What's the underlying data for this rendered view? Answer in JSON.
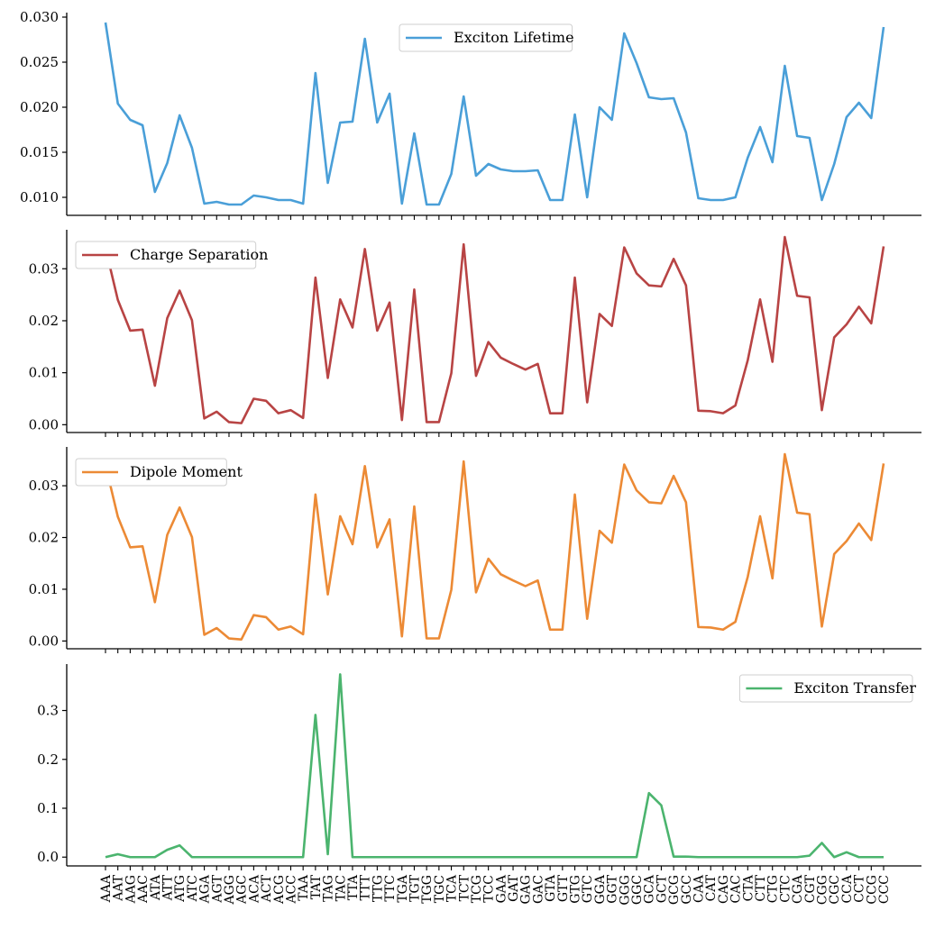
{
  "chart_data": {
    "type": "line",
    "x": [
      "AAA",
      "AAT",
      "AAG",
      "AAC",
      "ATA",
      "ATT",
      "ATG",
      "ATC",
      "AGA",
      "AGT",
      "AGG",
      "AGC",
      "ACA",
      "ACT",
      "ACG",
      "ACC",
      "TAA",
      "TAT",
      "TAG",
      "TAC",
      "TTA",
      "TTT",
      "TTG",
      "TTC",
      "TGA",
      "TGT",
      "TGG",
      "TGC",
      "TCA",
      "TCT",
      "TCG",
      "TCC",
      "GAA",
      "GAT",
      "GAG",
      "GAC",
      "GTA",
      "GTT",
      "GTG",
      "GTC",
      "GGA",
      "GGT",
      "GGG",
      "GGC",
      "GCA",
      "GCT",
      "GCG",
      "GCC",
      "CAA",
      "CAT",
      "CAG",
      "CAC",
      "CTA",
      "CTT",
      "CTG",
      "CTC",
      "CGA",
      "CGT",
      "CGG",
      "CGC",
      "CCA",
      "CCT",
      "CCG",
      "CCC"
    ],
    "panels": [
      {
        "name": "Exciton Lifetime",
        "color": "#4a9fd8",
        "legend": "upper-center",
        "ylim": [
          0.008,
          0.0305
        ],
        "yticks": [
          0.01,
          0.015,
          0.02,
          0.025,
          0.03
        ],
        "ytick_labels": [
          "0.010",
          "0.015",
          "0.020",
          "0.025",
          "0.030"
        ],
        "values": [
          0.0294,
          0.0204,
          0.0186,
          0.018,
          0.0106,
          0.0138,
          0.0191,
          0.0155,
          0.0093,
          0.0095,
          0.0092,
          0.0092,
          0.0102,
          0.01,
          0.0097,
          0.0097,
          0.0093,
          0.0238,
          0.0116,
          0.0183,
          0.0184,
          0.0276,
          0.0183,
          0.0215,
          0.0093,
          0.0171,
          0.0092,
          0.0092,
          0.0126,
          0.0212,
          0.0124,
          0.0137,
          0.0131,
          0.0129,
          0.0129,
          0.013,
          0.0097,
          0.0097,
          0.0192,
          0.01,
          0.02,
          0.0186,
          0.0282,
          0.0249,
          0.0211,
          0.0209,
          0.021,
          0.0172,
          0.0099,
          0.0097,
          0.0097,
          0.01,
          0.0144,
          0.0178,
          0.0139,
          0.0246,
          0.0168,
          0.0166,
          0.0097,
          0.0137,
          0.0189,
          0.0205,
          0.0188,
          0.0289
        ]
      },
      {
        "name": "Charge Separation",
        "color": "#b84444",
        "legend": "upper-left",
        "ylim": [
          -0.0015,
          0.0375
        ],
        "yticks": [
          0.0,
          0.01,
          0.02,
          0.03
        ],
        "ytick_labels": [
          "0.00",
          "0.01",
          "0.02",
          "0.03"
        ],
        "values": [
          0.034,
          0.024,
          0.0181,
          0.0183,
          0.0075,
          0.0205,
          0.0258,
          0.0201,
          0.0012,
          0.0025,
          0.0005,
          0.0003,
          0.005,
          0.0046,
          0.0022,
          0.0028,
          0.0013,
          0.0283,
          0.009,
          0.0241,
          0.0187,
          0.0338,
          0.0181,
          0.0235,
          0.0009,
          0.026,
          0.0005,
          0.0005,
          0.0099,
          0.0347,
          0.0094,
          0.0159,
          0.0129,
          0.0117,
          0.0106,
          0.0117,
          0.0022,
          0.0022,
          0.0283,
          0.0043,
          0.0213,
          0.019,
          0.0341,
          0.0291,
          0.0268,
          0.0266,
          0.0319,
          0.0268,
          0.0027,
          0.0026,
          0.0022,
          0.0037,
          0.0124,
          0.0241,
          0.0121,
          0.0361,
          0.0248,
          0.0245,
          0.0028,
          0.0168,
          0.0193,
          0.0227,
          0.0195,
          0.0343
        ]
      },
      {
        "name": "Dipole Moment",
        "color": "#ec8a35",
        "legend": "upper-left",
        "ylim": [
          -0.0015,
          0.0375
        ],
        "yticks": [
          0.0,
          0.01,
          0.02,
          0.03
        ],
        "ytick_labels": [
          "0.00",
          "0.01",
          "0.02",
          "0.03"
        ],
        "values": [
          0.034,
          0.024,
          0.0181,
          0.0183,
          0.0075,
          0.0205,
          0.0258,
          0.0201,
          0.0012,
          0.0025,
          0.0005,
          0.0003,
          0.005,
          0.0046,
          0.0022,
          0.0028,
          0.0013,
          0.0283,
          0.009,
          0.0241,
          0.0187,
          0.0338,
          0.0181,
          0.0235,
          0.0009,
          0.026,
          0.0005,
          0.0005,
          0.0099,
          0.0347,
          0.0094,
          0.0159,
          0.0129,
          0.0117,
          0.0106,
          0.0117,
          0.0022,
          0.0022,
          0.0283,
          0.0043,
          0.0213,
          0.019,
          0.0341,
          0.0291,
          0.0268,
          0.0266,
          0.0319,
          0.0268,
          0.0027,
          0.0026,
          0.0022,
          0.0037,
          0.0124,
          0.0241,
          0.0121,
          0.0361,
          0.0248,
          0.0245,
          0.0028,
          0.0168,
          0.0193,
          0.0227,
          0.0195,
          0.0343
        ]
      },
      {
        "name": "Exciton Transfer",
        "color": "#4bb46e",
        "legend": "upper-right",
        "ylim": [
          -0.018,
          0.395
        ],
        "yticks": [
          0.0,
          0.1,
          0.2,
          0.3
        ],
        "ytick_labels": [
          "0.0",
          "0.1",
          "0.2",
          "0.3"
        ],
        "values": [
          0.0,
          0.006,
          0.0,
          0.0,
          0.0,
          0.015,
          0.024,
          0.0,
          0.0,
          0.0,
          0.0,
          0.0,
          0.0,
          0.0,
          0.0,
          0.0,
          0.0,
          0.291,
          0.006,
          0.374,
          0.0,
          0.0,
          0.0,
          0.0,
          0.0,
          0.0,
          0.0,
          0.0,
          0.0,
          0.0,
          0.0,
          0.0,
          0.0,
          0.0,
          0.0,
          0.0,
          0.0,
          0.0,
          0.0,
          0.0,
          0.0,
          0.0,
          0.0,
          0.0,
          0.131,
          0.106,
          0.001,
          0.001,
          0.0,
          0.0,
          0.0,
          0.0,
          0.0,
          0.0,
          0.0,
          0.0,
          0.0,
          0.003,
          0.029,
          0.0,
          0.01,
          0.0,
          0.0,
          0.0
        ]
      }
    ]
  }
}
